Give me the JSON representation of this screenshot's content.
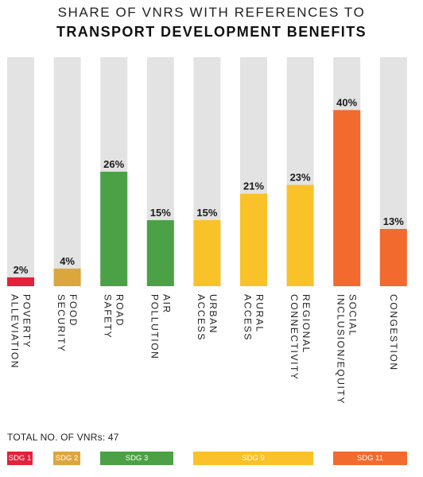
{
  "title": {
    "line1": "SHARE OF VNRS WITH REFERENCES TO",
    "line2": "TRANSPORT DEVELOPMENT BENEFITS"
  },
  "total_label": "TOTAL NO. OF VNRs: 47",
  "colors": {
    "track": "#e3e3e3",
    "sdg1": "#e5203a",
    "sdg2": "#dca63e",
    "sdg3": "#4ca146",
    "sdg9": "#f9c229",
    "sdg11": "#f26a2e"
  },
  "legend": [
    {
      "label": "SDG 1",
      "color": "#e5203a"
    },
    {
      "label": "SDG 2",
      "color": "#dca63e"
    },
    {
      "label": "SDG 3",
      "color": "#4ca146"
    },
    {
      "label": "SDG 9",
      "color": "#f9c229"
    },
    {
      "label": "SDG 11",
      "color": "#f26a2e"
    }
  ],
  "chart_data": {
    "type": "bar",
    "title": "SHARE OF VNRS WITH REFERENCES TO TRANSPORT DEVELOPMENT BENEFITS",
    "categories": [
      [
        "POVERTY",
        "ALLEVIATION"
      ],
      [
        "FOOD",
        "SECURITY"
      ],
      [
        "ROAD",
        "SAFETY"
      ],
      [
        "AIR",
        "POLLUTION"
      ],
      [
        "URBAN",
        "ACCESS"
      ],
      [
        "RURAL",
        "ACCESS"
      ],
      [
        "REGIONAL",
        "CONNECTIVITY"
      ],
      [
        "SOCIAL",
        "INCLUSION/EQUITY"
      ],
      [
        "CONGESTION"
      ]
    ],
    "values": [
      2,
      4,
      26,
      15,
      15,
      21,
      23,
      40,
      13
    ],
    "value_labels": [
      "2%",
      "4%",
      "26%",
      "15%",
      "15%",
      "21%",
      "23%",
      "40%",
      "13%"
    ],
    "groups": [
      "SDG 1",
      "SDG 2",
      "SDG 3",
      "SDG 3",
      "SDG 9",
      "SDG 9",
      "SDG 9",
      "SDG 11",
      "SDG 11"
    ],
    "ylim": [
      0,
      52
    ],
    "grid": false,
    "legend": "bottom"
  }
}
